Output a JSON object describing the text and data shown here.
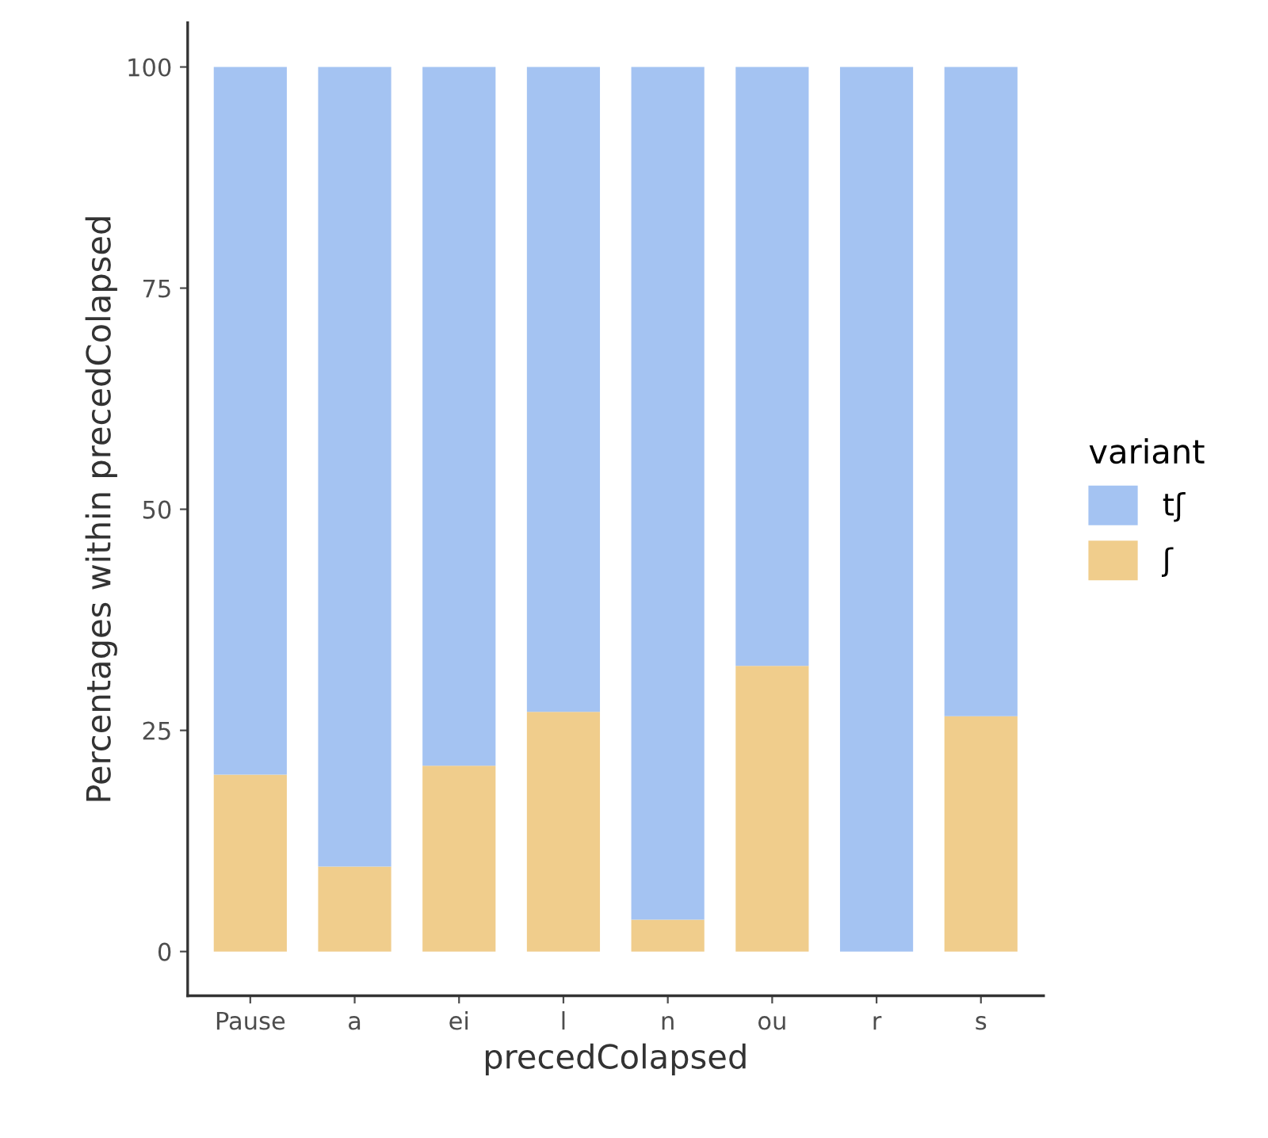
{
  "chart_data": {
    "type": "bar",
    "stacked": true,
    "xlabel": "precedColapsed",
    "ylabel": "Percentages within precedColapsed",
    "legend_title": "variant",
    "legend": "right",
    "categories": [
      "Pause",
      "a",
      "ei",
      "l",
      "n",
      "ou",
      "r",
      "s"
    ],
    "series": [
      {
        "name": "ʃ",
        "color": "#f0cd8c",
        "values": [
          20,
          9.6,
          21,
          27.1,
          3.6,
          32.3,
          0,
          26.6
        ]
      },
      {
        "name": "tʃ",
        "color": "#a4c3f2",
        "values": [
          80,
          90.4,
          79,
          72.9,
          96.4,
          67.7,
          100,
          73.4
        ]
      }
    ],
    "ylim": [
      -5,
      105
    ],
    "yticks": [
      0,
      25,
      50,
      75,
      100
    ],
    "grid": false
  }
}
